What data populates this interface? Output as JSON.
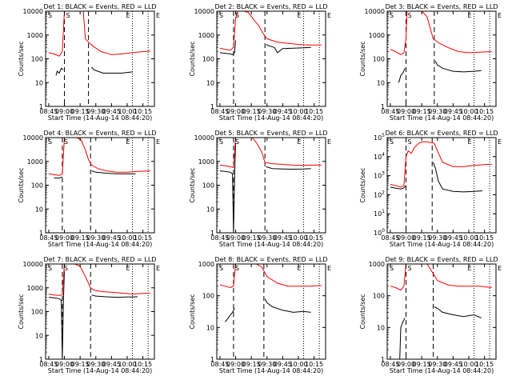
{
  "figure": {
    "xlabel": "Start Time (14-Aug-14 08:44:20)",
    "ylabel": "Counts/sec",
    "x_ticks": [
      "08:45",
      "09:00",
      "09:15",
      "09:30",
      "09:45",
      "10:00",
      "10:15"
    ],
    "colors": {
      "events": "#000000",
      "lld": "#ff0000"
    }
  },
  "chart_data": [
    {
      "type": "line",
      "title": "Det 1: BLACK = Events, RED = LLD",
      "ylabel": "Counts/sec",
      "xlabel": "Start Time (14-Aug-14 08:44:20)",
      "y_scale": "log",
      "ylim": [
        1,
        10000
      ],
      "y_ticks": [
        "1",
        "10",
        "100",
        "1000",
        "10000"
      ],
      "markers": {
        "S": 1,
        "E": 1
      },
      "dashed_lines": [
        "09:00",
        "09:23"
      ],
      "dotted_lines": [
        "10:05",
        "10:20"
      ],
      "series": [
        {
          "name": "BLACK = Events",
          "color": "#000000",
          "x": [
            "08:52",
            "08:53",
            "08:55",
            "08:57",
            "08:59"
          ],
          "y": [
            20,
            30,
            25,
            40,
            35
          ]
        },
        {
          "name": "BLACK = Events",
          "color": "#000000",
          "x": [
            "09:26",
            "09:28",
            "09:32",
            "09:37",
            "09:45",
            "09:55",
            "10:05"
          ],
          "y": [
            45,
            35,
            30,
            25,
            25,
            25,
            28
          ]
        },
        {
          "name": "RED = LLD",
          "color": "#ff0000",
          "x": [
            "08:45",
            "08:50",
            "08:55",
            "08:58",
            "09:00",
            "09:01",
            "09:04",
            "09:10",
            "09:15",
            "09:18",
            "09:20",
            "09:23",
            "09:27",
            "09:35",
            "09:45",
            "09:55",
            "10:05",
            "10:15",
            "10:22"
          ],
          "y": [
            180,
            160,
            130,
            200,
            10000,
            10000,
            10000,
            10000,
            10000,
            10000,
            700,
            500,
            350,
            200,
            150,
            160,
            180,
            200,
            210
          ]
        }
      ]
    },
    {
      "type": "line",
      "title": "Det 2: BLACK = Events, RED = LLD",
      "ylabel": "Counts/sec",
      "xlabel": "Start Time (14-Aug-14 08:44:20)",
      "y_scale": "log",
      "ylim": [
        1,
        10000
      ],
      "y_ticks": [
        "1",
        "10",
        "100",
        "1000",
        "10000"
      ],
      "markers": {
        "S": 1,
        "E": 1
      },
      "dashed_lines": [
        "08:58",
        "09:28"
      ],
      "dotted_lines": [
        "10:05",
        "10:20"
      ],
      "series": [
        {
          "name": "BLACK = Events",
          "color": "#000000",
          "x": [
            "08:45",
            "08:50",
            "08:55",
            "08:57",
            "08:59",
            "09:00"
          ],
          "y": [
            180,
            170,
            160,
            150,
            180,
            600
          ]
        },
        {
          "name": "BLACK = Events",
          "color": "#000000",
          "x": [
            "09:29",
            "09:32",
            "09:37",
            "09:40",
            "09:45",
            "09:55",
            "10:05",
            "10:12"
          ],
          "y": [
            400,
            350,
            300,
            180,
            270,
            280,
            290,
            300
          ]
        },
        {
          "name": "RED = LLD",
          "color": "#ff0000",
          "x": [
            "08:45",
            "08:50",
            "08:55",
            "08:58",
            "09:00",
            "09:02",
            "09:08",
            "09:12",
            "09:15",
            "09:18",
            "09:22",
            "09:26",
            "09:30",
            "09:40",
            "09:50",
            "10:00",
            "10:10",
            "10:22"
          ],
          "y": [
            280,
            250,
            230,
            300,
            5000,
            10000,
            10000,
            9000,
            6000,
            4000,
            2500,
            1200,
            700,
            500,
            450,
            400,
            380,
            380
          ]
        }
      ]
    },
    {
      "type": "line",
      "title": "Det 3: BLACK = Events, RED = LLD",
      "ylabel": "Counts/sec",
      "xlabel": "Start Time (14-Aug-14 08:44:20)",
      "y_scale": "log",
      "ylim": [
        1,
        10000
      ],
      "y_ticks": [
        "1",
        "10",
        "100",
        "1000",
        "10000"
      ],
      "markers": {
        "S": 1,
        "E": 1
      },
      "dashed_lines": [
        "09:00",
        "09:27"
      ],
      "dotted_lines": [
        "10:05",
        "10:20"
      ],
      "series": [
        {
          "name": "BLACK = Events",
          "color": "#000000",
          "x": [
            "08:53",
            "08:55",
            "08:57",
            "08:59"
          ],
          "y": [
            10,
            20,
            25,
            40
          ]
        },
        {
          "name": "BLACK = Events",
          "color": "#000000",
          "x": [
            "09:28",
            "09:30",
            "09:35",
            "09:45",
            "09:55",
            "10:05",
            "10:12"
          ],
          "y": [
            80,
            55,
            40,
            30,
            28,
            30,
            32
          ]
        },
        {
          "name": "RED = LLD",
          "color": "#ff0000",
          "x": [
            "08:45",
            "08:50",
            "08:55",
            "08:58",
            "09:00",
            "09:01",
            "09:04",
            "09:10",
            "09:15",
            "09:20",
            "09:26",
            "09:32",
            "09:40",
            "09:50",
            "10:00",
            "10:10",
            "10:22"
          ],
          "y": [
            250,
            200,
            150,
            180,
            700,
            10000,
            10000,
            10000,
            10000,
            6000,
            700,
            450,
            300,
            200,
            180,
            190,
            200
          ]
        }
      ]
    },
    {
      "type": "line",
      "title": "Det 4: BLACK = Events, RED = LLD",
      "ylabel": "Counts/sec",
      "xlabel": "Start Time (14-Aug-14 08:44:20)",
      "y_scale": "log",
      "ylim": [
        1,
        10000
      ],
      "y_ticks": [
        "1",
        "10",
        "100",
        "1000",
        "10000"
      ],
      "markers": {
        "S": 1,
        "E": 1
      },
      "dashed_lines": [
        "08:58",
        "09:25"
      ],
      "dotted_lines": [
        "10:05",
        "10:20"
      ],
      "series": [
        {
          "name": "BLACK = Events",
          "color": "#000000",
          "x": [
            "08:50",
            "08:55",
            "08:58"
          ],
          "y": [
            200,
            200,
            220
          ]
        },
        {
          "name": "BLACK = Events",
          "color": "#000000",
          "x": [
            "09:26",
            "09:30",
            "09:40",
            "09:50",
            "10:00",
            "10:08"
          ],
          "y": [
            400,
            350,
            320,
            300,
            300,
            300
          ]
        },
        {
          "name": "RED = LLD",
          "color": "#ff0000",
          "x": [
            "08:45",
            "08:50",
            "08:55",
            "08:58",
            "09:00",
            "09:04",
            "09:08",
            "09:12",
            "09:16",
            "09:20",
            "09:23",
            "09:26",
            "09:32",
            "09:40",
            "09:50",
            "10:00",
            "10:10",
            "10:22"
          ],
          "y": [
            300,
            280,
            260,
            300,
            10000,
            10000,
            10000,
            10000,
            8000,
            3000,
            1200,
            700,
            500,
            400,
            350,
            350,
            380,
            400
          ]
        }
      ]
    },
    {
      "type": "line",
      "title": "Det 5: BLACK = Events, RED = LLD",
      "ylabel": "Counts/sec",
      "xlabel": "Start Time (14-Aug-14 08:44:20)",
      "y_scale": "log",
      "ylim": [
        1,
        10000
      ],
      "y_ticks": [
        "1",
        "10",
        "100",
        "1000",
        "10000"
      ],
      "markers": {
        "S": 1,
        "E": 1
      },
      "dashed_lines": [
        "08:58",
        "09:28"
      ],
      "dotted_lines": [
        "10:05",
        "10:20"
      ],
      "series": [
        {
          "name": "BLACK = Events",
          "color": "#000000",
          "x": [
            "08:45",
            "08:50",
            "08:55",
            "08:57",
            "08:58",
            "08:59",
            "09:00"
          ],
          "y": [
            400,
            380,
            350,
            300,
            1,
            200,
            6000
          ]
        },
        {
          "name": "BLACK = Events",
          "color": "#000000",
          "x": [
            "09:29",
            "09:35",
            "09:45",
            "09:55",
            "10:05",
            "10:12"
          ],
          "y": [
            600,
            500,
            480,
            470,
            480,
            500
          ]
        },
        {
          "name": "RED = LLD",
          "color": "#ff0000",
          "x": [
            "08:45",
            "08:50",
            "08:55",
            "08:58",
            "09:00",
            "09:04",
            "09:10",
            "09:16",
            "09:20",
            "09:25",
            "09:28",
            "09:35",
            "09:45",
            "09:55",
            "10:05",
            "10:15",
            "10:22"
          ],
          "y": [
            700,
            650,
            600,
            550,
            10000,
            10000,
            10000,
            10000,
            6000,
            2500,
            900,
            800,
            750,
            700,
            680,
            700,
            700
          ]
        }
      ]
    },
    {
      "type": "line",
      "title": "Det 6: BLACK = Events, RED = LLD",
      "ylabel": "Counts/sec",
      "xlabel": "Start Time (14-Aug-14 08:44:20)",
      "y_scale": "log",
      "ylim": [
        1,
        100000
      ],
      "y_ticks": [
        "10^0",
        "10^1",
        "10^2",
        "10^3",
        "10^4",
        "10^5"
      ],
      "markers": {
        "S": 1,
        "E": 1
      },
      "dashed_lines": [
        "09:00",
        "09:25"
      ],
      "dotted_lines": [
        "10:05",
        "10:20"
      ],
      "series": [
        {
          "name": "BLACK = Events",
          "color": "#000000",
          "x": [
            "08:45",
            "08:50",
            "08:55",
            "08:58",
            "09:00"
          ],
          "y": [
            250,
            220,
            200,
            230,
            300
          ]
        },
        {
          "name": "BLACK = Events",
          "color": "#000000",
          "x": [
            "09:26",
            "09:28",
            "09:31",
            "09:35",
            "09:45",
            "09:55",
            "10:05",
            "10:13"
          ],
          "y": [
            5000,
            2500,
            500,
            200,
            150,
            140,
            150,
            160
          ]
        },
        {
          "name": "RED = LLD",
          "color": "#ff0000",
          "x": [
            "08:45",
            "08:50",
            "08:55",
            "08:58",
            "09:00",
            "09:02",
            "09:05",
            "09:08",
            "09:12",
            "09:16",
            "09:20",
            "09:24",
            "09:27",
            "09:30",
            "09:35",
            "09:45",
            "09:55",
            "10:05",
            "10:15",
            "10:22"
          ],
          "y": [
            350,
            300,
            250,
            300,
            10000,
            20000,
            15000,
            30000,
            50000,
            60000,
            60000,
            55000,
            50000,
            20000,
            5000,
            3000,
            3000,
            3500,
            3800,
            4000
          ]
        }
      ]
    },
    {
      "type": "line",
      "title": "Det 7: BLACK = Events, RED = LLD",
      "ylabel": "Counts/sec",
      "xlabel": "Start Time (14-Aug-14 08:44:20)",
      "y_scale": "log",
      "ylim": [
        1,
        10000
      ],
      "y_ticks": [
        "1",
        "10",
        "100",
        "1000",
        "10000"
      ],
      "markers": {
        "S": 1,
        "E": 1
      },
      "dashed_lines": [
        "08:58",
        "09:25"
      ],
      "dotted_lines": [
        "10:05",
        "10:20"
      ],
      "series": [
        {
          "name": "BLACK = Events",
          "color": "#000000",
          "x": [
            "08:45",
            "08:50",
            "08:55",
            "08:57",
            "08:58",
            "08:59",
            "09:00"
          ],
          "y": [
            400,
            380,
            350,
            300,
            1,
            250,
            5000
          ]
        },
        {
          "name": "BLACK = Events",
          "color": "#000000",
          "x": [
            "09:26",
            "09:30",
            "09:40",
            "09:50",
            "10:00",
            "10:10"
          ],
          "y": [
            500,
            450,
            420,
            400,
            410,
            420
          ]
        },
        {
          "name": "RED = LLD",
          "color": "#ff0000",
          "x": [
            "08:45",
            "08:50",
            "08:55",
            "08:58",
            "09:00",
            "09:04",
            "09:10",
            "09:15",
            "09:20",
            "09:25",
            "09:28",
            "09:35",
            "09:45",
            "09:55",
            "10:05",
            "10:15",
            "10:22"
          ],
          "y": [
            550,
            500,
            480,
            500,
            10000,
            10000,
            10000,
            8000,
            3000,
            1000,
            800,
            700,
            650,
            600,
            550,
            580,
            600
          ]
        }
      ]
    },
    {
      "type": "line",
      "title": "Det 8: BLACK = Events, RED = LLD",
      "ylabel": "Counts/sec",
      "xlabel": "Start Time (14-Aug-14 08:44:20)",
      "y_scale": "log",
      "ylim": [
        1,
        1000
      ],
      "y_ticks": [
        "1",
        "10",
        "100",
        "1000"
      ],
      "markers": {
        "S": 1,
        "E": 1
      },
      "dashed_lines": [
        "08:58",
        "09:27"
      ],
      "dotted_lines": [
        "10:05",
        "10:20"
      ],
      "series": [
        {
          "name": "BLACK = Events",
          "color": "#000000",
          "x": [
            "08:50",
            "08:53",
            "08:55",
            "08:57",
            "08:59"
          ],
          "y": [
            15,
            20,
            25,
            30,
            40
          ]
        },
        {
          "name": "BLACK = Events",
          "color": "#000000",
          "x": [
            "09:28",
            "09:30",
            "09:35",
            "09:45",
            "09:55",
            "10:05",
            "10:12"
          ],
          "y": [
            80,
            60,
            45,
            35,
            30,
            32,
            30
          ]
        },
        {
          "name": "RED = LLD",
          "color": "#ff0000",
          "x": [
            "08:45",
            "08:50",
            "08:55",
            "08:58",
            "09:00",
            "09:04",
            "09:10",
            "09:15",
            "09:20",
            "09:25",
            "09:30",
            "09:40",
            "09:50",
            "10:00",
            "10:10",
            "10:22"
          ],
          "y": [
            220,
            200,
            180,
            200,
            1000,
            1000,
            1000,
            1000,
            1000,
            800,
            400,
            250,
            200,
            200,
            200,
            210
          ]
        }
      ]
    },
    {
      "type": "line",
      "title": "Det 9: BLACK = Events, RED = LLD",
      "ylabel": "Counts/sec",
      "xlabel": "Start Time (14-Aug-14 08:44:20)",
      "y_scale": "log",
      "ylim": [
        1,
        1000
      ],
      "y_ticks": [
        "1",
        "10",
        "100",
        "1000"
      ],
      "markers": {
        "S": 1,
        "E": 1
      },
      "dashed_lines": [
        "09:00",
        "09:26"
      ],
      "dotted_lines": [
        "10:05",
        "10:20"
      ],
      "series": [
        {
          "name": "BLACK = Events",
          "color": "#000000",
          "x": [
            "08:54",
            "08:55",
            "08:57",
            "08:59"
          ],
          "y": [
            1,
            10,
            15,
            20
          ]
        },
        {
          "name": "BLACK = Events",
          "color": "#000000",
          "x": [
            "09:27",
            "09:30",
            "09:35",
            "09:45",
            "09:55",
            "10:05",
            "10:12"
          ],
          "y": [
            45,
            40,
            30,
            25,
            22,
            25,
            20
          ]
        },
        {
          "name": "RED = LLD",
          "color": "#ff0000",
          "x": [
            "08:45",
            "08:50",
            "08:55",
            "08:58",
            "09:00",
            "09:04",
            "09:10",
            "09:15",
            "09:20",
            "09:26",
            "09:30",
            "09:40",
            "09:50",
            "10:00",
            "10:10",
            "10:22"
          ],
          "y": [
            200,
            180,
            150,
            200,
            1000,
            1000,
            1000,
            1000,
            1000,
            500,
            300,
            220,
            200,
            200,
            200,
            180
          ]
        }
      ]
    }
  ]
}
